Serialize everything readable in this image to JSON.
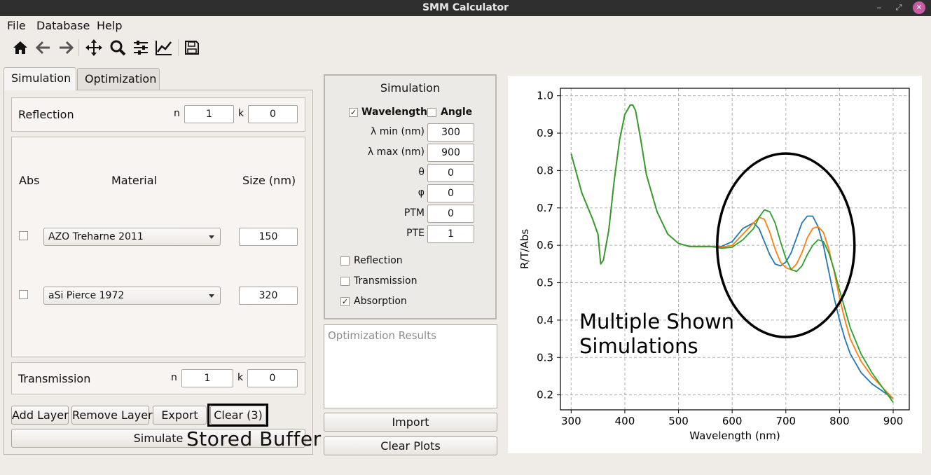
{
  "window": {
    "title": "SMM Calculator",
    "min": "‒",
    "restore": "⤢",
    "close": "✕"
  },
  "menu": [
    "File",
    "Database",
    "Help"
  ],
  "toolbar": [
    "home-icon",
    "back-icon",
    "forward-icon",
    "pan-icon",
    "zoom-icon",
    "configure-subplots-icon",
    "edit-axis-icon",
    "save-icon"
  ],
  "tabs": {
    "simulation": "Simulation",
    "optimization": "Optimization"
  },
  "reflection": {
    "label": "Reflection",
    "n_label": "n",
    "n_value": "1",
    "k_label": "k",
    "k_value": "0"
  },
  "layers": {
    "headers": {
      "abs": "Abs",
      "material": "Material",
      "size": "Size (nm)"
    },
    "rows": [
      {
        "material": "AZO Treharne 2011",
        "size": "150"
      },
      {
        "material": "aSi Pierce 1972",
        "size": "320"
      }
    ]
  },
  "transmission": {
    "label": "Transmission",
    "n_label": "n",
    "n_value": "1",
    "k_label": "k",
    "k_value": "0"
  },
  "buttons": {
    "add_layer": "Add Layer",
    "remove_layer": "Remove Layer",
    "export": "Export",
    "clear": "Clear (3)",
    "simulate": "Simulate",
    "import": "Import",
    "clear_plots": "Clear Plots"
  },
  "annotations": {
    "stored_buffer": "Stored Buffer",
    "multiple_sims_line1": "Multiple Shown",
    "multiple_sims_line2": "Simulations"
  },
  "sim": {
    "title": "Simulation",
    "wavelength": "Wavelength",
    "angle": "Angle",
    "lmin_label": "λ min (nm)",
    "lmin": "300",
    "lmax_label": "λ max (nm)",
    "lmax": "900",
    "theta_label": "θ",
    "theta": "0",
    "phi_label": "φ",
    "phi": "0",
    "ptm_label": "PTM",
    "ptm": "0",
    "pte_label": "PTE",
    "pte": "1",
    "reflection": "Reflection",
    "transmission": "Transmission",
    "absorption": "Absorption"
  },
  "opt_results_placeholder": "Optimization Results",
  "chart_data": {
    "type": "line",
    "xlabel": "Wavelength (nm)",
    "ylabel": "R/T/Abs",
    "xlim": [
      280,
      930
    ],
    "ylim": [
      0.16,
      1.02
    ],
    "xticks": [
      300,
      400,
      500,
      600,
      700,
      800,
      900
    ],
    "yticks": [
      0.2,
      0.3,
      0.4,
      0.5,
      0.6,
      0.7,
      0.8,
      0.9,
      1.0
    ],
    "grid": true,
    "colors": [
      "#1f77b4",
      "#ff7f0e",
      "#2ca02c"
    ],
    "x": [
      300,
      320,
      340,
      350,
      355,
      360,
      370,
      380,
      390,
      400,
      410,
      415,
      420,
      430,
      440,
      460,
      480,
      500,
      520,
      540,
      560,
      580,
      600,
      620,
      640,
      650,
      660,
      670,
      680,
      690,
      700,
      710,
      720,
      730,
      740,
      750,
      760,
      770,
      780,
      790,
      800,
      810,
      820,
      840,
      860,
      880,
      900
    ],
    "series": [
      {
        "values": [
          0.845,
          0.74,
          0.67,
          0.63,
          0.55,
          0.56,
          0.64,
          0.77,
          0.88,
          0.95,
          0.975,
          0.975,
          0.96,
          0.88,
          0.79,
          0.69,
          0.63,
          0.605,
          0.597,
          0.597,
          0.597,
          0.597,
          0.61,
          0.645,
          0.66,
          0.645,
          0.61,
          0.575,
          0.55,
          0.545,
          0.555,
          0.58,
          0.62,
          0.66,
          0.678,
          0.678,
          0.65,
          0.6,
          0.53,
          0.46,
          0.4,
          0.35,
          0.31,
          0.26,
          0.23,
          0.21,
          0.19
        ]
      },
      {
        "values": [
          0.845,
          0.74,
          0.67,
          0.63,
          0.55,
          0.56,
          0.64,
          0.77,
          0.88,
          0.95,
          0.975,
          0.975,
          0.96,
          0.88,
          0.79,
          0.69,
          0.63,
          0.605,
          0.597,
          0.597,
          0.597,
          0.595,
          0.6,
          0.63,
          0.66,
          0.675,
          0.67,
          0.635,
          0.59,
          0.555,
          0.54,
          0.535,
          0.55,
          0.58,
          0.62,
          0.645,
          0.65,
          0.635,
          0.59,
          0.53,
          0.46,
          0.4,
          0.35,
          0.29,
          0.25,
          0.22,
          0.19
        ]
      },
      {
        "values": [
          0.845,
          0.74,
          0.67,
          0.63,
          0.55,
          0.56,
          0.64,
          0.77,
          0.88,
          0.95,
          0.975,
          0.975,
          0.96,
          0.88,
          0.79,
          0.69,
          0.63,
          0.605,
          0.597,
          0.597,
          0.597,
          0.592,
          0.595,
          0.615,
          0.645,
          0.675,
          0.695,
          0.69,
          0.66,
          0.61,
          0.565,
          0.535,
          0.53,
          0.545,
          0.575,
          0.6,
          0.615,
          0.61,
          0.58,
          0.535,
          0.48,
          0.43,
          0.38,
          0.31,
          0.26,
          0.22,
          0.18
        ]
      }
    ]
  }
}
